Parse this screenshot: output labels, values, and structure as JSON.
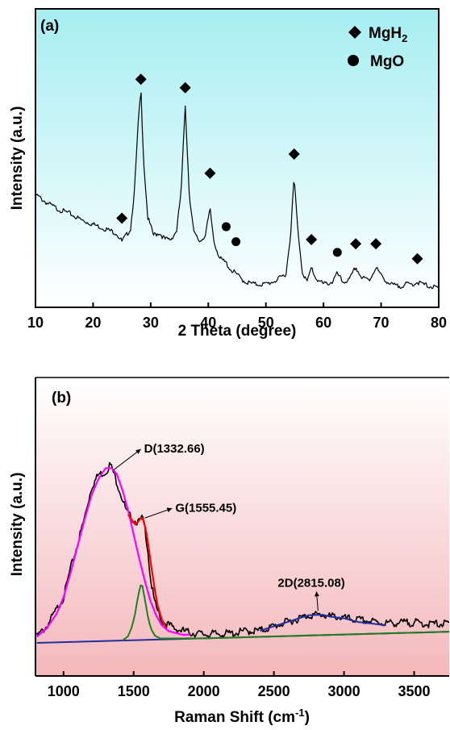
{
  "chart_data": [
    {
      "type": "line",
      "panel_label": "(a)",
      "xlabel": "2 Theta (degree)",
      "ylabel": "Intensity (a.u.)",
      "xlim": [
        10,
        80
      ],
      "ylim": [
        0,
        1
      ],
      "x_ticks": [
        "10",
        "20",
        "30",
        "40",
        "50",
        "60",
        "70",
        "80"
      ],
      "background": "cyan-to-white vertical gradient",
      "gradient_colors": [
        "#a6eef2",
        "#ffffff"
      ],
      "line_color": "#000000",
      "legend": [
        {
          "symbol": "diamond",
          "label": "MgH",
          "subscript": "2"
        },
        {
          "symbol": "circle",
          "label": "MgO"
        }
      ],
      "legend_position": "top-right",
      "peaks": [
        {
          "x": 25.0,
          "y": 0.27,
          "phase": "MgH2"
        },
        {
          "x": 28.3,
          "y": 0.92,
          "phase": "MgH2"
        },
        {
          "x": 36.0,
          "y": 0.88,
          "phase": "MgH2"
        },
        {
          "x": 40.3,
          "y": 0.48,
          "phase": "MgH2"
        },
        {
          "x": 43.1,
          "y": 0.23,
          "phase": "MgO"
        },
        {
          "x": 44.8,
          "y": 0.16,
          "phase": "MgO"
        },
        {
          "x": 54.9,
          "y": 0.57,
          "phase": "MgH2"
        },
        {
          "x": 57.9,
          "y": 0.17,
          "phase": "MgH2"
        },
        {
          "x": 62.4,
          "y": 0.11,
          "phase": "MgO"
        },
        {
          "x": 65.6,
          "y": 0.15,
          "phase": "MgH2"
        },
        {
          "x": 69.1,
          "y": 0.15,
          "phase": "MgH2"
        },
        {
          "x": 76.3,
          "y": 0.08,
          "phase": "MgH2"
        }
      ],
      "series": [
        {
          "color": "#000000",
          "x": [
            10,
            12,
            14,
            16,
            18,
            20,
            22,
            24,
            25.0,
            25.8,
            26.5,
            27.2,
            27.8,
            28.3,
            28.8,
            29.5,
            30.5,
            31.5,
            32.5,
            33.5,
            34.5,
            35.3,
            36.0,
            36.7,
            37.5,
            38.5,
            39.5,
            40.3,
            41.0,
            42.0,
            43.1,
            43.8,
            44.8,
            45.5,
            46.5,
            48,
            50,
            52,
            53.5,
            54.3,
            54.9,
            55.5,
            56.3,
            57.2,
            57.9,
            58.6,
            60,
            61.5,
            62.4,
            63.3,
            64.5,
            65.6,
            66.6,
            68.0,
            69.1,
            70.0,
            71.5,
            73,
            74.5,
            75.5,
            76.3,
            77.2,
            78.5,
            80
          ],
          "y": [
            0.43,
            0.39,
            0.36,
            0.34,
            0.31,
            0.29,
            0.27,
            0.25,
            0.21,
            0.24,
            0.27,
            0.45,
            0.75,
            0.92,
            0.58,
            0.32,
            0.24,
            0.25,
            0.22,
            0.22,
            0.26,
            0.45,
            0.85,
            0.43,
            0.25,
            0.21,
            0.24,
            0.36,
            0.21,
            0.13,
            0.11,
            0.08,
            0.06,
            0.04,
            0.02,
            0.01,
            0.01,
            0.03,
            0.06,
            0.25,
            0.51,
            0.28,
            0.07,
            0.02,
            0.09,
            0.04,
            0.01,
            0.02,
            0.06,
            0.02,
            0.03,
            0.09,
            0.04,
            0.03,
            0.09,
            0.05,
            0.01,
            0.0,
            0.01,
            0.01,
            0.02,
            0.01,
            0.0,
            -0.01
          ]
        }
      ]
    },
    {
      "type": "line",
      "panel_label": "(b)",
      "xlabel": "Raman Shift (cm",
      "xlabel_sup": "-1",
      "xlabel_end": ")",
      "ylabel": "Intensity (a.u.)",
      "xlim": [
        800,
        3750
      ],
      "ylim": [
        0,
        1
      ],
      "x_ticks": [
        "1000",
        "1500",
        "2000",
        "2500",
        "3000",
        "3500"
      ],
      "background": "white-to-pink vertical gradient",
      "gradient_colors": [
        "#ffffff",
        "#f4b8bc"
      ],
      "annotations": [
        {
          "text": "D(1332.66)",
          "x": 1332.66,
          "y": 0.84
        },
        {
          "text": "G(1555.45)",
          "x": 1555.45,
          "y": 0.6
        },
        {
          "text": "2D(2815.08)",
          "x": 2815.08,
          "y": 0.12
        }
      ],
      "series": [
        {
          "color": "#000000",
          "x": [
            810,
            880,
            950,
            1000,
            1050,
            1100,
            1150,
            1200,
            1250,
            1300,
            1332,
            1360,
            1400,
            1450,
            1500,
            1540,
            1560,
            1580,
            1600,
            1620,
            1650,
            1700,
            1750,
            1800,
            1900,
            2000,
            2100,
            2200,
            2300,
            2400,
            2500,
            2550,
            2600,
            2650,
            2700,
            2750,
            2800,
            2850,
            2900,
            2950,
            3000,
            3100,
            3200,
            3300,
            3400,
            3500,
            3600,
            3700,
            3750
          ],
          "y": [
            0.03,
            0.08,
            0.16,
            0.22,
            0.36,
            0.48,
            0.61,
            0.76,
            0.82,
            0.83,
            0.87,
            0.82,
            0.74,
            0.63,
            0.59,
            0.58,
            0.6,
            0.55,
            0.45,
            0.3,
            0.18,
            0.09,
            0.07,
            0.05,
            0.03,
            0.02,
            0.02,
            0.02,
            0.03,
            0.03,
            0.05,
            0.06,
            0.07,
            0.08,
            0.09,
            0.1,
            0.1,
            0.1,
            0.09,
            0.09,
            0.08,
            0.07,
            0.06,
            0.05,
            0.05,
            0.05,
            0.04,
            0.04,
            0.04
          ]
        },
        {
          "color": "#ff00ff",
          "x": [
            810,
            880,
            950,
            1000,
            1050,
            1100,
            1150,
            1200,
            1250,
            1300,
            1340,
            1380,
            1420,
            1460,
            1500,
            1540,
            1580,
            1620,
            1660,
            1700,
            1750,
            1800,
            1850,
            1900
          ],
          "y": [
            0.03,
            0.07,
            0.14,
            0.22,
            0.34,
            0.47,
            0.6,
            0.72,
            0.8,
            0.85,
            0.85,
            0.82,
            0.74,
            0.64,
            0.52,
            0.4,
            0.29,
            0.19,
            0.12,
            0.07,
            0.04,
            0.03,
            0.02,
            0.02
          ]
        },
        {
          "color": "#ff0000",
          "x": [
            1460,
            1490,
            1510,
            1530,
            1550,
            1570,
            1590,
            1610,
            1630,
            1650,
            1670,
            1700,
            1730
          ],
          "y": [
            0.62,
            0.59,
            0.57,
            0.58,
            0.6,
            0.59,
            0.53,
            0.44,
            0.34,
            0.25,
            0.17,
            0.1,
            0.06
          ]
        },
        {
          "color": "#1f7f1f",
          "x": [
            1420,
            1460,
            1490,
            1510,
            1530,
            1545,
            1555,
            1565,
            1580,
            1600,
            1620,
            1650,
            1690,
            2000,
            2500,
            3000,
            3500,
            3750
          ],
          "y": [
            0.0,
            0.02,
            0.07,
            0.13,
            0.21,
            0.26,
            0.28,
            0.26,
            0.2,
            0.12,
            0.06,
            0.02,
            0.005,
            0.0,
            0.0,
            0.0,
            0.0,
            0.0
          ]
        },
        {
          "color": "#1f2f9f",
          "x": [
            2400,
            2500,
            2600,
            2700,
            2750,
            2800,
            2850,
            2900,
            3000,
            3100,
            3200,
            3300
          ],
          "y": [
            0.03,
            0.05,
            0.07,
            0.09,
            0.1,
            0.1,
            0.1,
            0.09,
            0.08,
            0.06,
            0.05,
            0.04
          ]
        }
      ],
      "baseline_color": "#1f2f9f"
    }
  ]
}
